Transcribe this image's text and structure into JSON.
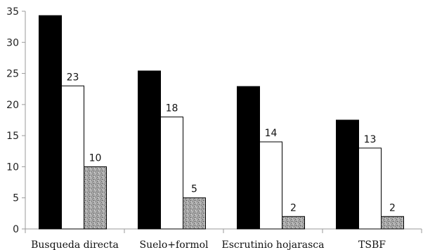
{
  "chart_data": {
    "type": "bar",
    "categories": [
      "Busqueda directa",
      "Suelo+formol",
      "Escrutinio hojarasca",
      "TSBF"
    ],
    "series": [
      {
        "values": [
          34.3,
          25.4,
          22.9,
          17.5
        ],
        "color": "#000000",
        "fill": "solid"
      },
      {
        "values": [
          23,
          18,
          14,
          13
        ],
        "color": "#ffffff",
        "fill": "outline",
        "labels": [
          "23",
          "18",
          "14",
          "13"
        ]
      },
      {
        "values": [
          10,
          5,
          2,
          2
        ],
        "color": "#9a9a9a",
        "fill": "speckled-gray",
        "labels": [
          "10",
          "5",
          "2",
          "2"
        ]
      }
    ],
    "ylim": [
      0,
      35
    ],
    "yticks": [
      0,
      5,
      10,
      15,
      20,
      25,
      30,
      35
    ],
    "ytick_labels": [
      "0",
      "5",
      "10",
      "15",
      "20",
      "25",
      "30",
      "35"
    ],
    "grid": false,
    "legend": "none",
    "title": "",
    "xlabel": "",
    "ylabel": ""
  }
}
